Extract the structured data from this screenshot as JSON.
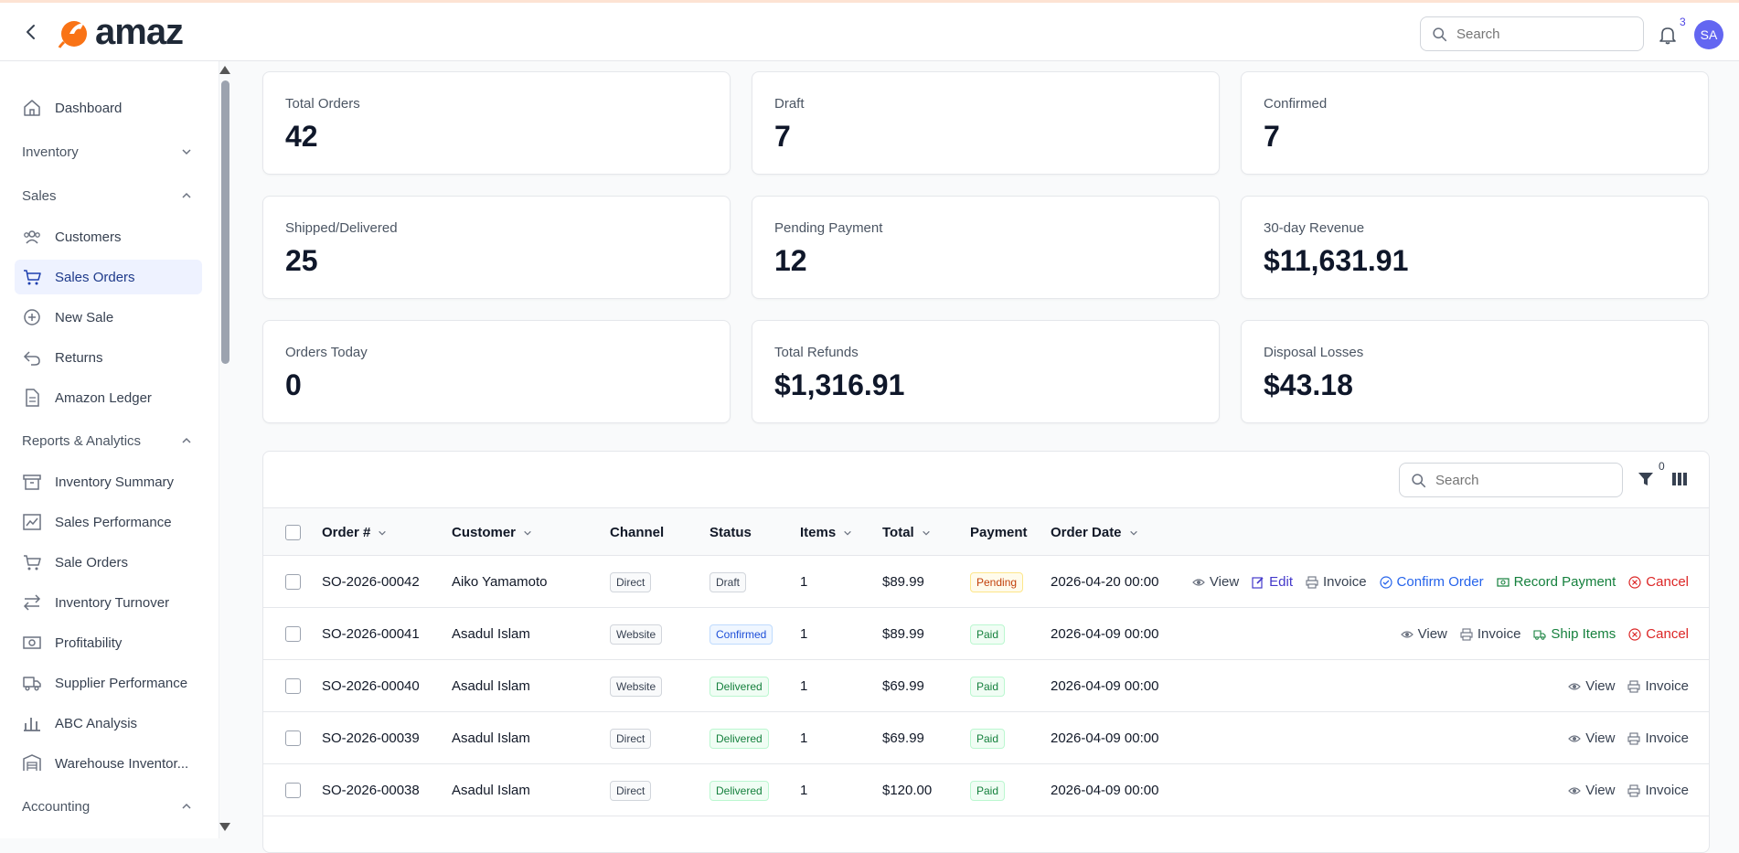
{
  "app": {
    "brand": "amaz",
    "notifications_count": "3",
    "user_initials": "SA"
  },
  "topbar": {
    "search_placeholder": "Search"
  },
  "sidebar": {
    "dashboard": "Dashboard",
    "inventory_section": "Inventory",
    "sales_section": "Sales",
    "customers": "Customers",
    "sales_orders": "Sales Orders",
    "new_sale": "New Sale",
    "returns": "Returns",
    "amazon_ledger": "Amazon Ledger",
    "reports_section": "Reports & Analytics",
    "inventory_summary": "Inventory Summary",
    "sales_performance": "Sales Performance",
    "sale_orders": "Sale Orders",
    "inventory_turnover": "Inventory Turnover",
    "profitability": "Profitability",
    "supplier_performance": "Supplier Performance",
    "abc_analysis": "ABC Analysis",
    "warehouse_inventory": "Warehouse Inventor...",
    "accounting_section": "Accounting"
  },
  "stats": [
    {
      "title": "Total Orders",
      "value": "42"
    },
    {
      "title": "Draft",
      "value": "7"
    },
    {
      "title": "Confirmed",
      "value": "7"
    },
    {
      "title": "Shipped/Delivered",
      "value": "25"
    },
    {
      "title": "Pending Payment",
      "value": "12"
    },
    {
      "title": "30-day Revenue",
      "value": "$11,631.91"
    },
    {
      "title": "Orders Today",
      "value": "0"
    },
    {
      "title": "Total Refunds",
      "value": "$1,316.91"
    },
    {
      "title": "Disposal Losses",
      "value": "$43.18"
    }
  ],
  "table": {
    "search_placeholder": "Search",
    "filter_count": "0",
    "headers": {
      "order": "Order #",
      "customer": "Customer",
      "channel": "Channel",
      "status": "Status",
      "items": "Items",
      "total": "Total",
      "payment": "Payment",
      "date": "Order Date"
    },
    "rows": [
      {
        "order": "SO-2026-00042",
        "customer": "Aiko Yamamoto",
        "channel": "Direct",
        "status": "Draft",
        "items": "1",
        "total": "$89.99",
        "payment": "Pending",
        "date": "2026-04-20 00:00"
      },
      {
        "order": "SO-2026-00041",
        "customer": "Asadul Islam",
        "channel": "Website",
        "status": "Confirmed",
        "items": "1",
        "total": "$89.99",
        "payment": "Paid",
        "date": "2026-04-09 00:00"
      },
      {
        "order": "SO-2026-00040",
        "customer": "Asadul Islam",
        "channel": "Website",
        "status": "Delivered",
        "items": "1",
        "total": "$69.99",
        "payment": "Paid",
        "date": "2026-04-09 00:00"
      },
      {
        "order": "SO-2026-00039",
        "customer": "Asadul Islam",
        "channel": "Direct",
        "status": "Delivered",
        "items": "1",
        "total": "$69.99",
        "payment": "Paid",
        "date": "2026-04-09 00:00"
      },
      {
        "order": "SO-2026-00038",
        "customer": "Asadul Islam",
        "channel": "Direct",
        "status": "Delivered",
        "items": "1",
        "total": "$120.00",
        "payment": "Paid",
        "date": "2026-04-09 00:00"
      }
    ],
    "actions": {
      "view": "View",
      "edit": "Edit",
      "invoice": "Invoice",
      "confirm": "Confirm Order",
      "record_payment": "Record Payment",
      "cancel": "Cancel",
      "ship": "Ship Items"
    }
  }
}
